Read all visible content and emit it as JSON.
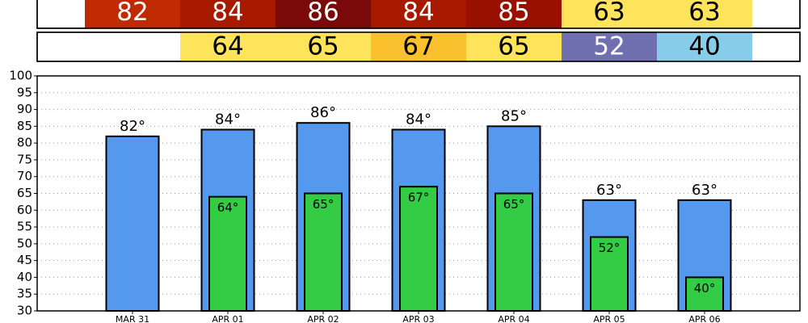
{
  "chart_data": {
    "type": "bar",
    "categories": [
      "MAR 31",
      "APR 01",
      "APR 02",
      "APR 03",
      "APR 04",
      "APR 05",
      "APR 06"
    ],
    "series": [
      {
        "color": "#5599ee",
        "values": [
          82,
          84,
          86,
          84,
          85,
          63,
          63
        ],
        "value_labels": [
          "82°",
          "84°",
          "86°",
          "84°",
          "85°",
          "63°",
          "63°"
        ],
        "strip_colors": [
          "#bf2a00",
          "#a81a00",
          "#7a0a0a",
          "#a81a00",
          "#9a1000",
          "#fde45a",
          "#fde45a"
        ]
      },
      {
        "color": "#33cc44",
        "values": [
          null,
          64,
          65,
          67,
          65,
          52,
          40
        ],
        "value_labels": [
          null,
          "64°",
          "65°",
          "67°",
          "65°",
          "52°",
          "40°"
        ],
        "strip_colors": [
          null,
          "#fde45a",
          "#fde45a",
          "#fbc02d",
          "#fde45a",
          "#7070b0",
          "#87cce8"
        ]
      }
    ],
    "ylim": [
      30,
      100
    ],
    "yticks": [
      30,
      35,
      40,
      45,
      50,
      55,
      60,
      65,
      70,
      75,
      80,
      85,
      90,
      95,
      100
    ],
    "grid": true
  }
}
